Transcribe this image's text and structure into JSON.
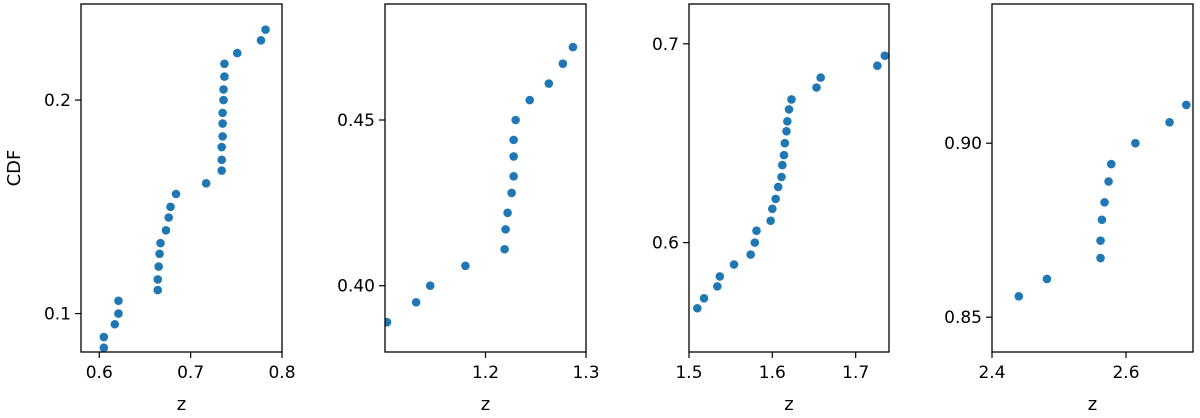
{
  "chart_data": [
    {
      "type": "scatter",
      "xlabel": "z",
      "ylabel": "CDF",
      "xlim": [
        0.58,
        0.8
      ],
      "ylim": [
        0.082,
        0.245
      ],
      "xticks": [
        0.6,
        0.7,
        0.8
      ],
      "xtick_labels": [
        "0.6",
        "0.7",
        "0.8"
      ],
      "yticks": [
        0.1,
        0.2
      ],
      "ytick_labels": [
        "0.1",
        "0.2"
      ],
      "grid": false,
      "color": "#1f77b4",
      "points": [
        [
          0.605,
          0.084
        ],
        [
          0.605,
          0.089
        ],
        [
          0.617,
          0.095
        ],
        [
          0.621,
          0.1
        ],
        [
          0.621,
          0.106
        ],
        [
          0.664,
          0.111
        ],
        [
          0.664,
          0.116
        ],
        [
          0.665,
          0.122
        ],
        [
          0.666,
          0.128
        ],
        [
          0.667,
          0.133
        ],
        [
          0.673,
          0.139
        ],
        [
          0.676,
          0.145
        ],
        [
          0.678,
          0.15
        ],
        [
          0.684,
          0.156
        ],
        [
          0.717,
          0.161
        ],
        [
          0.734,
          0.167
        ],
        [
          0.734,
          0.172
        ],
        [
          0.734,
          0.178
        ],
        [
          0.735,
          0.183
        ],
        [
          0.735,
          0.189
        ],
        [
          0.735,
          0.194
        ],
        [
          0.736,
          0.2
        ],
        [
          0.736,
          0.205
        ],
        [
          0.737,
          0.211
        ],
        [
          0.737,
          0.217
        ],
        [
          0.751,
          0.222
        ],
        [
          0.777,
          0.228
        ],
        [
          0.782,
          0.233
        ]
      ]
    },
    {
      "type": "scatter",
      "xlabel": "z",
      "ylabel": "",
      "xlim": [
        1.1,
        1.3
      ],
      "ylim": [
        0.38,
        0.485
      ],
      "xticks": [
        1.2,
        1.3
      ],
      "xtick_labels": [
        "1.2",
        "1.3"
      ],
      "yticks": [
        0.4,
        0.45
      ],
      "ytick_labels": [
        "0.40",
        "0.45"
      ],
      "grid": false,
      "color": "#1f77b4",
      "points": [
        [
          1.102,
          0.389
        ],
        [
          1.131,
          0.395
        ],
        [
          1.145,
          0.4
        ],
        [
          1.18,
          0.406
        ],
        [
          1.219,
          0.411
        ],
        [
          1.22,
          0.417
        ],
        [
          1.222,
          0.422
        ],
        [
          1.226,
          0.428
        ],
        [
          1.228,
          0.433
        ],
        [
          1.228,
          0.439
        ],
        [
          1.228,
          0.444
        ],
        [
          1.23,
          0.45
        ],
        [
          1.244,
          0.456
        ],
        [
          1.263,
          0.461
        ],
        [
          1.277,
          0.467
        ],
        [
          1.287,
          0.472
        ]
      ]
    },
    {
      "type": "scatter",
      "xlabel": "z",
      "ylabel": "",
      "xlim": [
        1.5,
        1.74
      ],
      "ylim": [
        0.545,
        0.72
      ],
      "xticks": [
        1.5,
        1.6,
        1.7
      ],
      "xtick_labels": [
        "1.5",
        "1.6",
        "1.7"
      ],
      "yticks": [
        0.6,
        0.7
      ],
      "ytick_labels": [
        "0.6",
        "0.7"
      ],
      "grid": false,
      "color": "#1f77b4",
      "points": [
        [
          1.51,
          0.567
        ],
        [
          1.518,
          0.572
        ],
        [
          1.534,
          0.578
        ],
        [
          1.537,
          0.583
        ],
        [
          1.554,
          0.589
        ],
        [
          1.574,
          0.594
        ],
        [
          1.579,
          0.6
        ],
        [
          1.581,
          0.606
        ],
        [
          1.598,
          0.611
        ],
        [
          1.6,
          0.617
        ],
        [
          1.604,
          0.622
        ],
        [
          1.607,
          0.628
        ],
        [
          1.611,
          0.633
        ],
        [
          1.612,
          0.639
        ],
        [
          1.614,
          0.644
        ],
        [
          1.615,
          0.65
        ],
        [
          1.617,
          0.656
        ],
        [
          1.618,
          0.661
        ],
        [
          1.62,
          0.667
        ],
        [
          1.623,
          0.672
        ],
        [
          1.653,
          0.678
        ],
        [
          1.658,
          0.683
        ],
        [
          1.726,
          0.689
        ],
        [
          1.735,
          0.694
        ]
      ]
    },
    {
      "type": "scatter",
      "xlabel": "z",
      "ylabel": "",
      "xlim": [
        2.4,
        2.7
      ],
      "ylim": [
        0.84,
        0.94
      ],
      "xticks": [
        2.4,
        2.6
      ],
      "xtick_labels": [
        "2.4",
        "2.6"
      ],
      "yticks": [
        0.85,
        0.9
      ],
      "ytick_labels": [
        "0.85",
        "0.90"
      ],
      "grid": false,
      "color": "#1f77b4",
      "points": [
        [
          2.44,
          0.856
        ],
        [
          2.482,
          0.861
        ],
        [
          2.562,
          0.867
        ],
        [
          2.562,
          0.872
        ],
        [
          2.564,
          0.878
        ],
        [
          2.568,
          0.883
        ],
        [
          2.574,
          0.889
        ],
        [
          2.578,
          0.894
        ],
        [
          2.614,
          0.9
        ],
        [
          2.665,
          0.906
        ],
        [
          2.69,
          0.911
        ]
      ]
    }
  ]
}
